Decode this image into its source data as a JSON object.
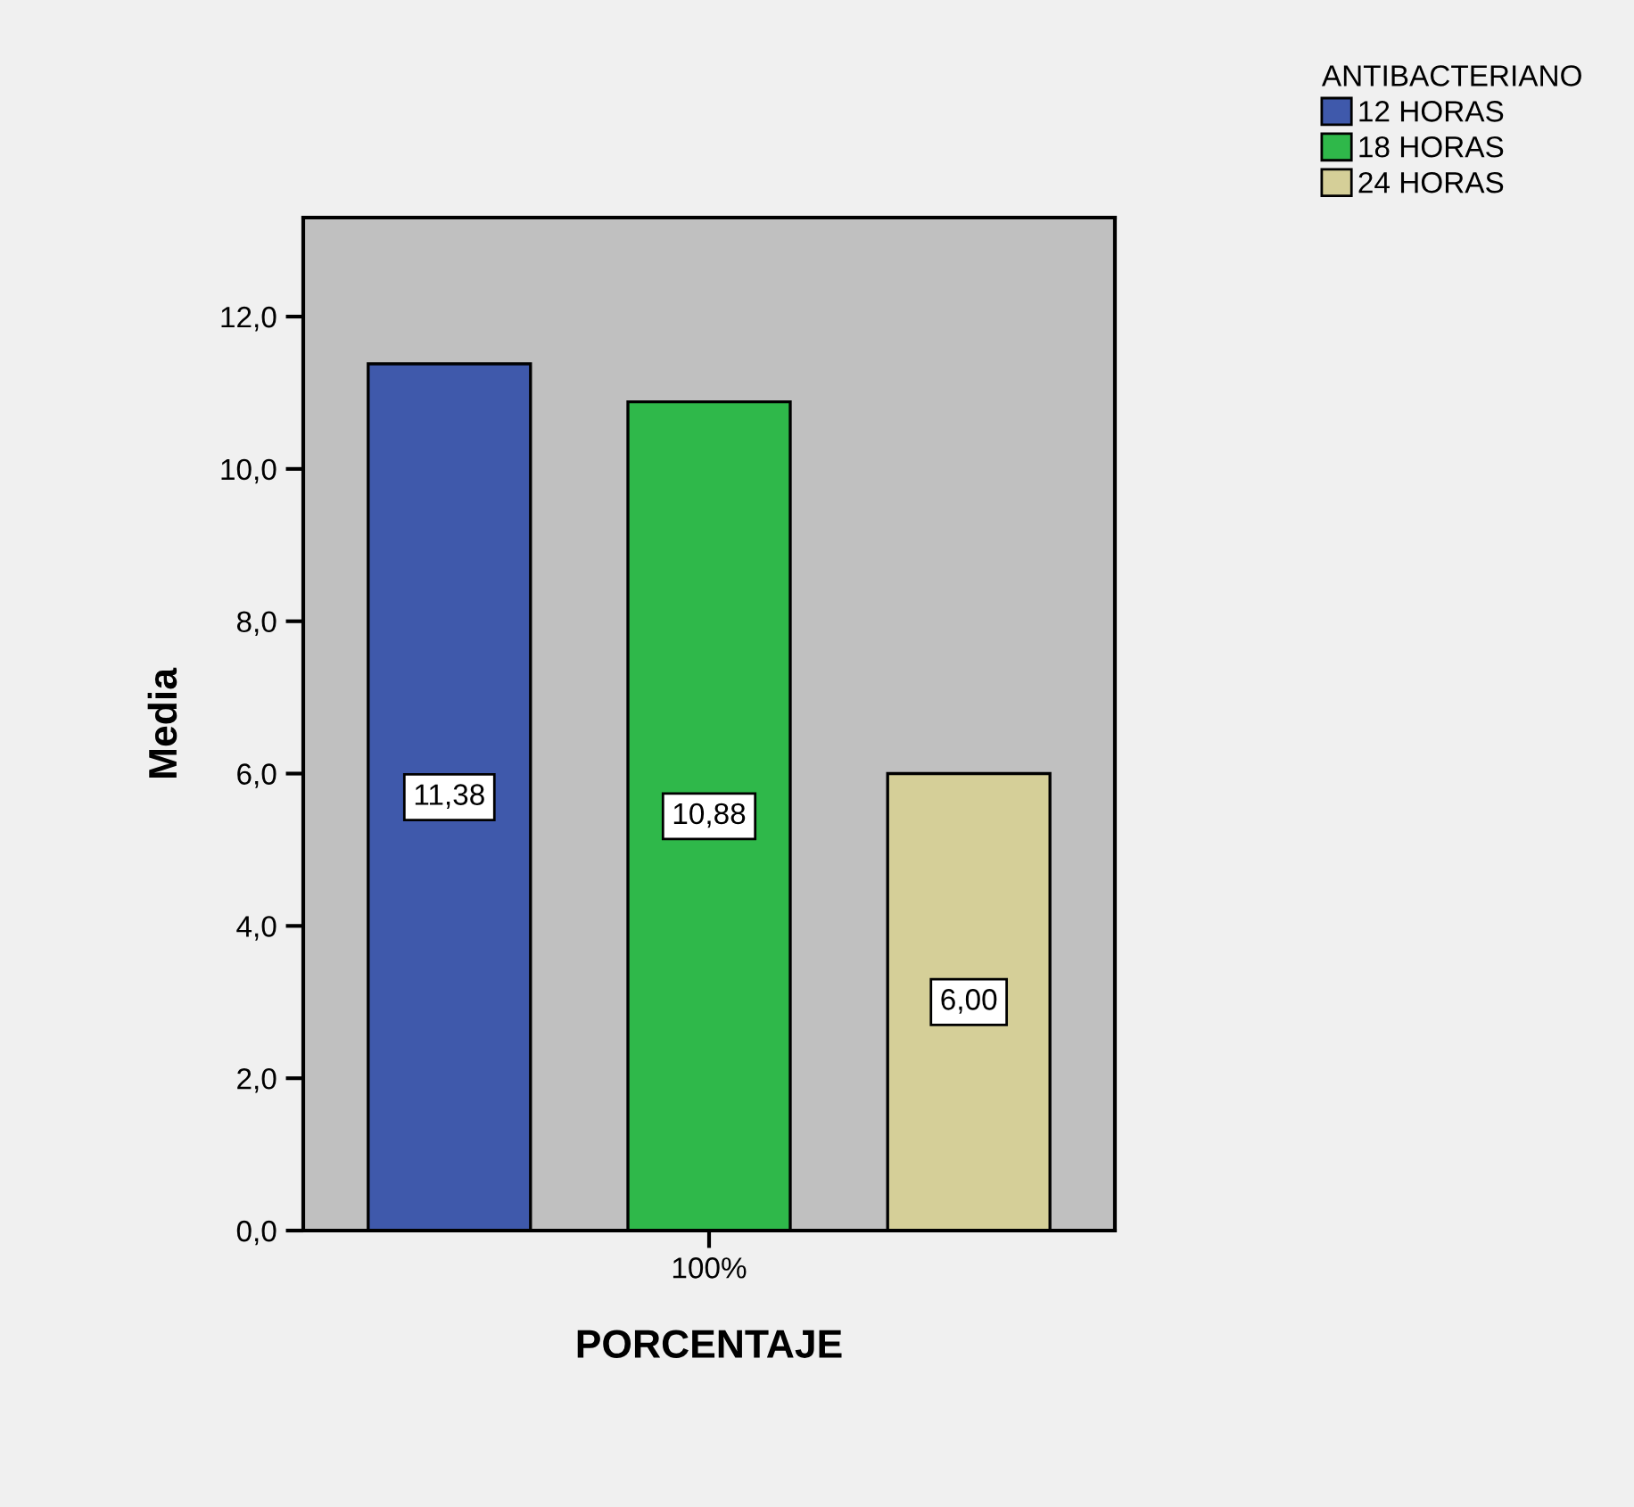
{
  "chart_data": {
    "type": "bar",
    "categories": [
      "100%"
    ],
    "xlabel": "PORCENTAJE",
    "ylabel": "Media",
    "legend_title": "ANTIBACTERIANO",
    "series": [
      {
        "name": "12 HORAS",
        "color": "#3f59ab",
        "values": [
          11.38
        ],
        "value_labels": [
          "11,38"
        ]
      },
      {
        "name": "18 HORAS",
        "color": "#2fb84a",
        "values": [
          10.88
        ],
        "value_labels": [
          "10,88"
        ]
      },
      {
        "name": "24 HORAS",
        "color": "#d5cf98",
        "values": [
          6.0
        ],
        "value_labels": [
          "6,00"
        ]
      }
    ],
    "ylim": [
      0,
      13.3
    ],
    "yticks": [
      {
        "value": 0,
        "label": "0,0"
      },
      {
        "value": 2,
        "label": "2,0"
      },
      {
        "value": 4,
        "label": "4,0"
      },
      {
        "value": 6,
        "label": "6,0"
      },
      {
        "value": 8,
        "label": "8,0"
      },
      {
        "value": 10,
        "label": "10,0"
      },
      {
        "value": 12,
        "label": "12,0"
      }
    ],
    "grid": false,
    "legend": "top right"
  }
}
